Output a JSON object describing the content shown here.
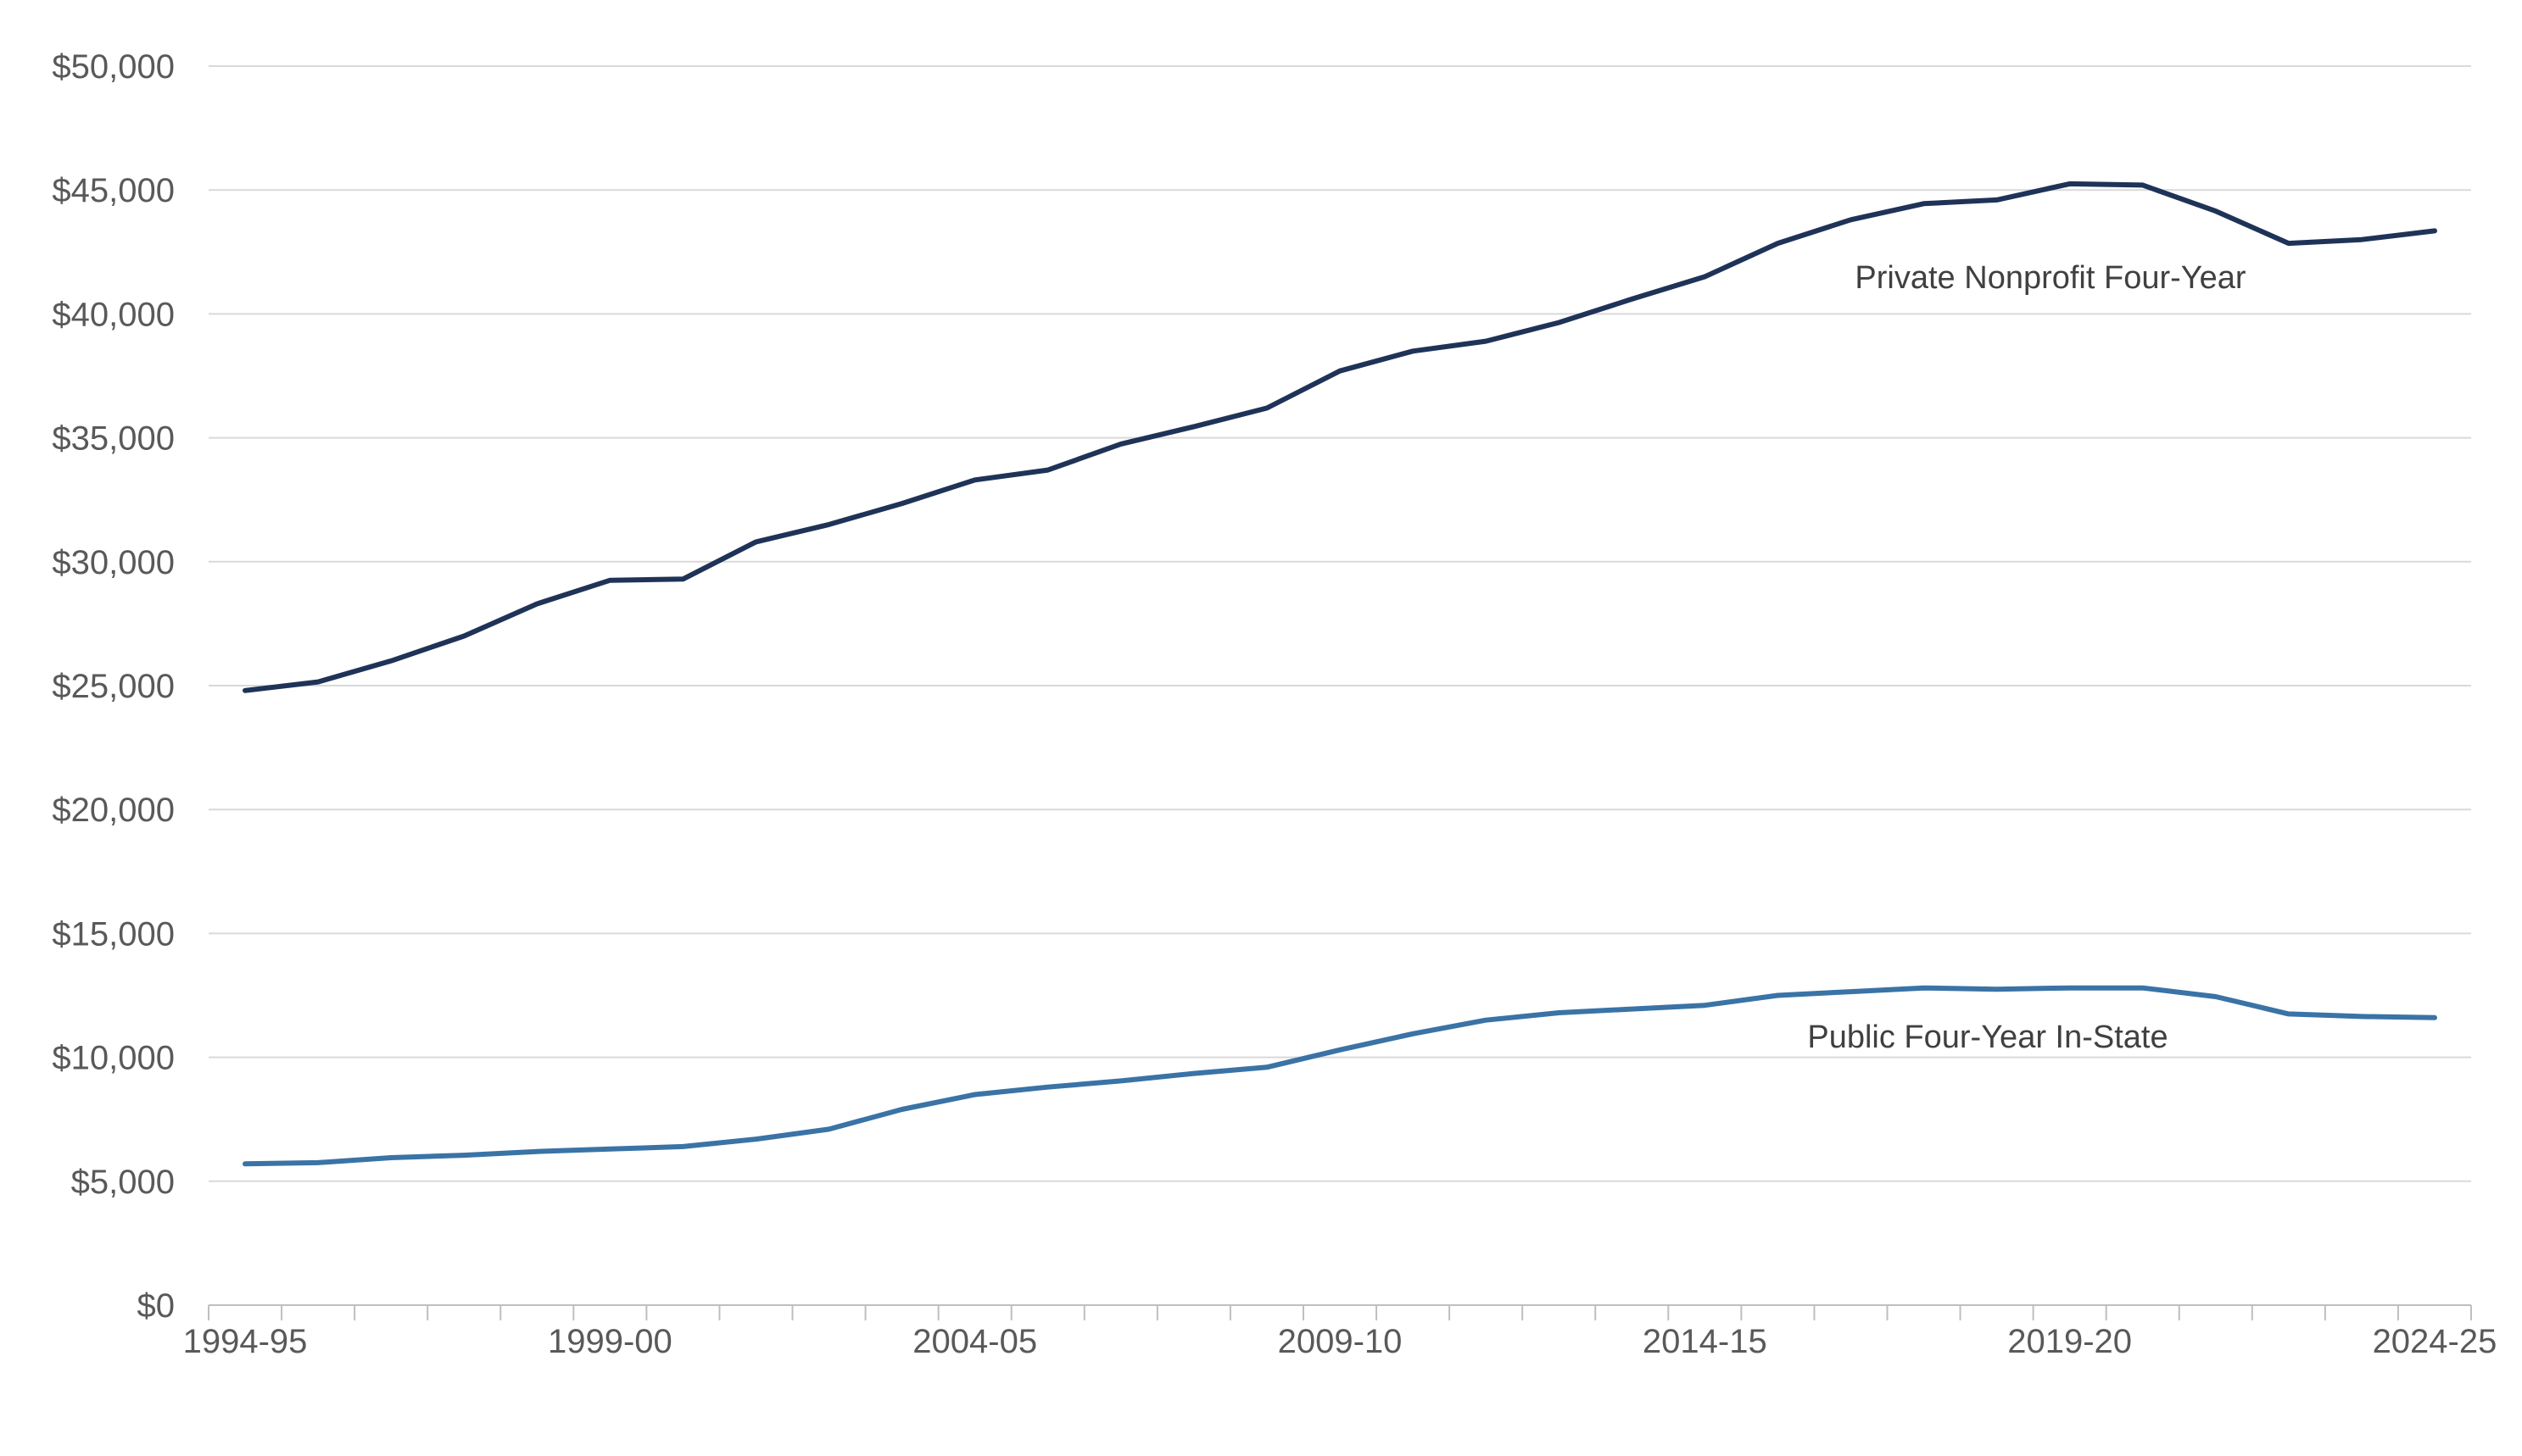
{
  "chart_data": {
    "type": "line",
    "title": "",
    "xlabel": "",
    "ylabel": "",
    "ylim": [
      0,
      50000
    ],
    "y_ticks": [
      0,
      5000,
      10000,
      15000,
      20000,
      25000,
      30000,
      35000,
      40000,
      45000,
      50000
    ],
    "y_tick_labels": [
      "$0",
      "$5,000",
      "$10,000",
      "$15,000",
      "$20,000",
      "$25,000",
      "$30,000",
      "$35,000",
      "$40,000",
      "$45,000",
      "$50,000"
    ],
    "grid": true,
    "x": [
      "1994-95",
      "1995-96",
      "1996-97",
      "1997-98",
      "1998-99",
      "1999-00",
      "2000-01",
      "2001-02",
      "2002-03",
      "2003-04",
      "2004-05",
      "2005-06",
      "2006-07",
      "2007-08",
      "2008-09",
      "2009-10",
      "2010-11",
      "2011-12",
      "2012-13",
      "2013-14",
      "2014-15",
      "2015-16",
      "2016-17",
      "2017-18",
      "2018-19",
      "2019-20",
      "2020-21",
      "2021-22",
      "2022-23",
      "2023-24",
      "2024-25"
    ],
    "x_tick_labels": [
      "1994-95",
      "1999-00",
      "2004-05",
      "2009-10",
      "2014-15",
      "2019-20",
      "2024-25"
    ],
    "series": [
      {
        "name": "Private Nonprofit Four-Year",
        "color": "#1f3358",
        "values": [
          24800,
          25150,
          26000,
          27000,
          28300,
          29250,
          29300,
          30800,
          31500,
          32350,
          33300,
          33700,
          34750,
          35450,
          36200,
          37700,
          38500,
          38900,
          39650,
          40600,
          41500,
          42850,
          43800,
          44450,
          44600,
          45250,
          45200,
          44150,
          42850,
          43000,
          43350
        ]
      },
      {
        "name": "Public Four-Year In-State",
        "color": "#3a73a6",
        "values": [
          5700,
          5750,
          5950,
          6050,
          6200,
          6300,
          6400,
          6700,
          7100,
          7900,
          8500,
          8800,
          9050,
          9350,
          9600,
          10300,
          10950,
          11500,
          11800,
          11950,
          12100,
          12500,
          12650,
          12800,
          12750,
          12800,
          12800,
          12450,
          11750,
          11650,
          11600
        ]
      }
    ]
  }
}
